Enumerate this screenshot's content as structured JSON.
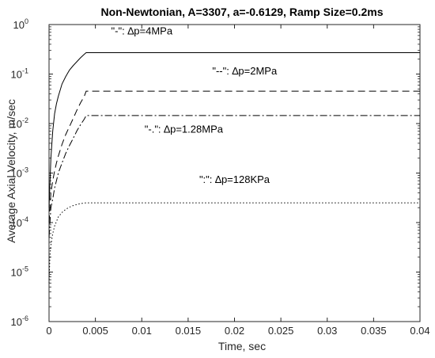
{
  "chart_data": {
    "type": "line",
    "title": "Non-Newtonian, A=3307, a=-0.6129, Ramp Size=0.2ms",
    "xlabel": "Time, sec",
    "ylabel": "Average Axial Velocity, m/sec",
    "xlim": [
      0,
      0.04
    ],
    "ylim": [
      1e-06,
      1
    ],
    "yscale": "log",
    "grid": false,
    "legend": "none",
    "x_ticks": [
      {
        "value": 0,
        "label": "0"
      },
      {
        "value": 0.005,
        "label": "0.005"
      },
      {
        "value": 0.01,
        "label": "0.01"
      },
      {
        "value": 0.015,
        "label": "0.015"
      },
      {
        "value": 0.02,
        "label": "0.02"
      },
      {
        "value": 0.025,
        "label": "0.025"
      },
      {
        "value": 0.03,
        "label": "0.03"
      },
      {
        "value": 0.035,
        "label": "0.035"
      },
      {
        "value": 0.04,
        "label": "0.04"
      }
    ],
    "y_ticks": [
      {
        "value": 1,
        "base": "10",
        "exp": "0"
      },
      {
        "value": 0.1,
        "base": "10",
        "exp": "-1"
      },
      {
        "value": 0.01,
        "base": "10",
        "exp": "-2"
      },
      {
        "value": 0.001,
        "base": "10",
        "exp": "-3"
      },
      {
        "value": 0.0001,
        "base": "10",
        "exp": "-4"
      },
      {
        "value": 1e-05,
        "base": "10",
        "exp": "-5"
      },
      {
        "value": 1e-06,
        "base": "10",
        "exp": "-6"
      }
    ],
    "series": [
      {
        "style": "solid",
        "color": "#000000",
        "x": [
          0,
          0.0002,
          0.0004,
          0.0006,
          0.0008,
          0.001,
          0.0014,
          0.0018,
          0.0022,
          0.0026,
          0.003,
          0.0034,
          0.0038,
          0.004,
          0.04
        ],
        "y": [
          0.0002,
          0.002,
          0.0071,
          0.0158,
          0.0251,
          0.0355,
          0.0631,
          0.0891,
          0.1202,
          0.1479,
          0.1778,
          0.2138,
          0.2512,
          0.27,
          0.27
        ]
      },
      {
        "style": "dashed",
        "color": "#000000",
        "x": [
          0,
          0.0002,
          0.0004,
          0.0006,
          0.0008,
          0.001,
          0.0014,
          0.0018,
          0.0022,
          0.0026,
          0.003,
          0.0034,
          0.0038,
          0.004,
          0.04
        ],
        "y": [
          0.0001,
          0.0004,
          0.0007,
          0.0011,
          0.0016,
          0.0022,
          0.0038,
          0.006,
          0.0087,
          0.0126,
          0.0186,
          0.0263,
          0.0355,
          0.045,
          0.045
        ]
      },
      {
        "style": "dashdot",
        "color": "#000000",
        "x": [
          0,
          0.0002,
          0.0004,
          0.0006,
          0.0008,
          0.001,
          0.0014,
          0.0018,
          0.0022,
          0.0026,
          0.003,
          0.0034,
          0.0038,
          0.004,
          0.04
        ],
        "y": [
          5e-05,
          0.0002,
          0.0003,
          0.0005,
          0.0007,
          0.001,
          0.0016,
          0.0025,
          0.0036,
          0.005,
          0.0071,
          0.0095,
          0.0123,
          0.0145,
          0.0145
        ]
      },
      {
        "style": "dotted",
        "color": "#000000",
        "x": [
          0,
          0.0001,
          0.0002,
          0.0004,
          0.0006,
          0.0008,
          0.001,
          0.0014,
          0.0018,
          0.0022,
          0.0026,
          0.003,
          0.0034,
          0.0038,
          0.004,
          0.04
        ],
        "y": [
          6e-06,
          2.2e-05,
          3.5e-05,
          6e-05,
          8.5e-05,
          0.000105,
          0.00013,
          0.00016,
          0.000185,
          0.000205,
          0.00022,
          0.000232,
          0.000242,
          0.000248,
          0.00025,
          0.00025
        ]
      }
    ],
    "annotations": [
      {
        "text": "\"-\": ∆p=4MPa",
        "x": 0.0067,
        "y": 0.63
      },
      {
        "text": "\"--\": ∆p=2MPa",
        "x": 0.0176,
        "y": 0.098
      },
      {
        "text": "\"-.\": ∆p=1.28MPa",
        "x": 0.0103,
        "y": 0.0066
      },
      {
        "text": "\":\": ∆p=128KPa",
        "x": 0.0162,
        "y": 0.00063
      }
    ]
  }
}
